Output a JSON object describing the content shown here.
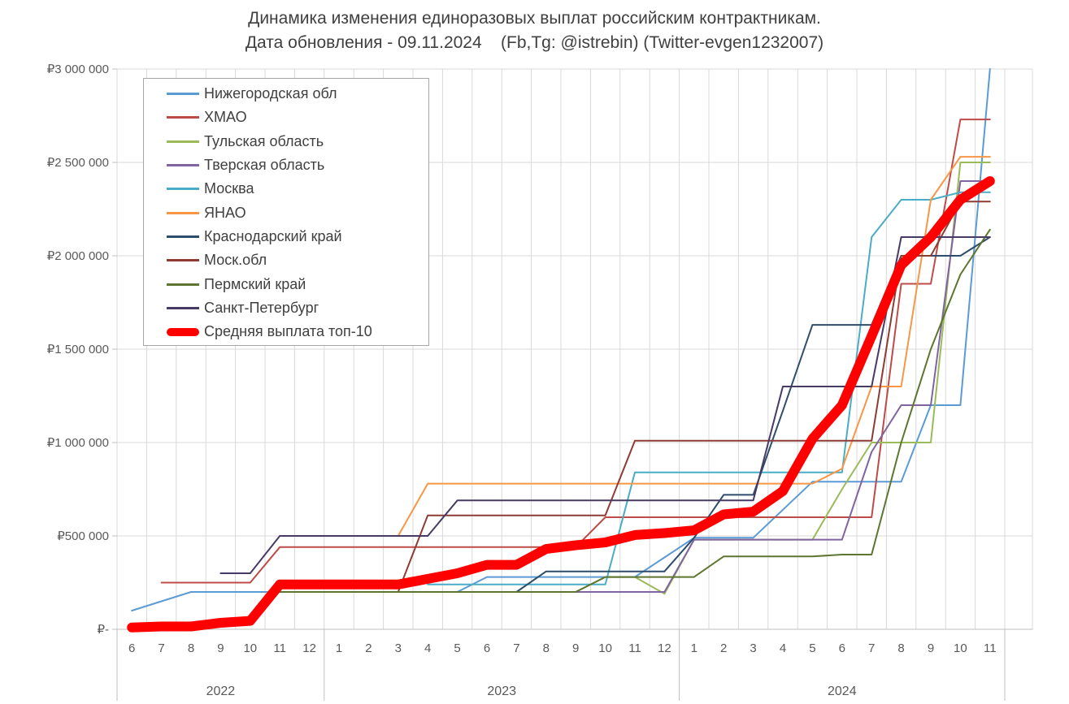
{
  "title": {
    "line1": "Динамика изменения единоразовых выплат российским контрактникам.",
    "line2": "Дата обновления - 09.11.2024    (Fb,Tg: @istrebin) (Twitter-evgen1232007)"
  },
  "chart_data": {
    "type": "line",
    "title": "Динамика изменения единоразовых выплат российским контрактникам.",
    "subtitle": "Дата обновления - 09.11.2024 (Fb,Tg: @istrebin) (Twitter-evgen1232007)",
    "grid": true,
    "legend_position": "top-left-inside",
    "x_months": [
      "6",
      "7",
      "8",
      "9",
      "10",
      "11",
      "12",
      "1",
      "2",
      "3",
      "4",
      "5",
      "6",
      "7",
      "8",
      "9",
      "10",
      "11",
      "12",
      "1",
      "2",
      "3",
      "4",
      "5",
      "6",
      "7",
      "8",
      "9",
      "10",
      "11"
    ],
    "x_years": [
      {
        "label": "2022",
        "start": 0,
        "count": 7
      },
      {
        "label": "2023",
        "start": 7,
        "count": 12
      },
      {
        "label": "2024",
        "start": 19,
        "count": 11
      }
    ],
    "y_axis": {
      "min": 0,
      "max": 3000000,
      "tick_values": [
        0,
        500000,
        1000000,
        1500000,
        2000000,
        2500000,
        3000000
      ],
      "tick_labels": [
        "₽-",
        "₽500 000",
        "₽1 000 000",
        "₽1 500 000",
        "₽2 000 000",
        "₽2 500 000",
        "₽3 000 000"
      ]
    },
    "series": [
      {
        "name": "Нижегородская обл",
        "color": "#5B9BD5",
        "width": 2,
        "values": [
          100000,
          150000,
          200000,
          200000,
          200000,
          200000,
          200000,
          200000,
          200000,
          200000,
          200000,
          200000,
          280000,
          280000,
          280000,
          280000,
          280000,
          280000,
          385000,
          490000,
          490000,
          490000,
          640000,
          790000,
          790000,
          790000,
          790000,
          1200000,
          1200000,
          3000000
        ]
      },
      {
        "name": "ХМАО",
        "color": "#BE4B48",
        "width": 2,
        "values": [
          null,
          250000,
          250000,
          250000,
          250000,
          440000,
          440000,
          440000,
          440000,
          440000,
          440000,
          440000,
          440000,
          440000,
          440000,
          440000,
          600000,
          600000,
          600000,
          600000,
          600000,
          600000,
          600000,
          600000,
          600000,
          600000,
          1850000,
          1850000,
          2730000,
          2730000
        ]
      },
      {
        "name": "Тульская область",
        "color": "#9BBB59",
        "width": 2,
        "values": [
          null,
          null,
          null,
          null,
          null,
          200000,
          200000,
          200000,
          200000,
          200000,
          200000,
          200000,
          200000,
          200000,
          200000,
          200000,
          280000,
          280000,
          190000,
          480000,
          480000,
          480000,
          480000,
          480000,
          750000,
          1000000,
          1000000,
          1000000,
          2500000,
          2500000
        ]
      },
      {
        "name": "Тверская область",
        "color": "#8064A2",
        "width": 2,
        "values": [
          null,
          null,
          null,
          null,
          null,
          200000,
          200000,
          200000,
          200000,
          200000,
          200000,
          200000,
          200000,
          200000,
          200000,
          200000,
          200000,
          200000,
          200000,
          480000,
          480000,
          480000,
          480000,
          480000,
          480000,
          950000,
          1200000,
          1200000,
          2400000,
          2400000
        ]
      },
      {
        "name": "Москва",
        "color": "#4BACC6",
        "width": 2,
        "values": [
          null,
          null,
          null,
          null,
          null,
          null,
          null,
          null,
          null,
          null,
          240000,
          240000,
          240000,
          240000,
          240000,
          240000,
          240000,
          840000,
          840000,
          840000,
          840000,
          840000,
          840000,
          840000,
          840000,
          2100000,
          2300000,
          2300000,
          2340000,
          2340000
        ]
      },
      {
        "name": "ЯНАО",
        "color": "#F79646",
        "width": 2,
        "values": [
          null,
          null,
          null,
          null,
          null,
          500000,
          500000,
          500000,
          500000,
          500000,
          780000,
          780000,
          780000,
          780000,
          780000,
          780000,
          780000,
          780000,
          780000,
          780000,
          780000,
          780000,
          780000,
          780000,
          860000,
          1300000,
          1300000,
          2300000,
          2530000,
          2530000
        ]
      },
      {
        "name": "Краснодарский край",
        "color": "#2E4D6B",
        "width": 2,
        "values": [
          null,
          null,
          null,
          null,
          null,
          200000,
          200000,
          200000,
          200000,
          200000,
          200000,
          200000,
          200000,
          200000,
          310000,
          310000,
          310000,
          310000,
          310000,
          490000,
          720000,
          720000,
          1170000,
          1630000,
          1630000,
          1630000,
          2000000,
          2000000,
          2000000,
          2100000
        ]
      },
      {
        "name": "Моск.обл",
        "color": "#8E3B34",
        "width": 2,
        "values": [
          null,
          null,
          null,
          null,
          null,
          200000,
          200000,
          200000,
          200000,
          200000,
          610000,
          610000,
          610000,
          610000,
          610000,
          610000,
          610000,
          1010000,
          1010000,
          1010000,
          1010000,
          1010000,
          1010000,
          1010000,
          1010000,
          1010000,
          2000000,
          2000000,
          2290000,
          2290000
        ]
      },
      {
        "name": "Пермский край",
        "color": "#5E7530",
        "width": 2,
        "values": [
          null,
          null,
          null,
          null,
          null,
          200000,
          200000,
          200000,
          200000,
          200000,
          200000,
          200000,
          200000,
          200000,
          200000,
          200000,
          280000,
          280000,
          280000,
          280000,
          390000,
          390000,
          390000,
          390000,
          400000,
          400000,
          1000000,
          1500000,
          1900000,
          2140000
        ]
      },
      {
        "name": "Санкт-Петербург",
        "color": "#473B66",
        "width": 2,
        "values": [
          null,
          null,
          null,
          300000,
          300000,
          500000,
          500000,
          500000,
          500000,
          500000,
          500000,
          690000,
          690000,
          690000,
          690000,
          690000,
          690000,
          690000,
          690000,
          690000,
          690000,
          690000,
          1300000,
          1300000,
          1300000,
          1300000,
          2100000,
          2100000,
          2100000,
          2100000
        ]
      },
      {
        "name": "Средняя выплата топ-10",
        "color": "#FF0000",
        "width": 12,
        "values": [
          10000,
          15000,
          15000,
          35000,
          45000,
          240000,
          240000,
          240000,
          240000,
          240000,
          270000,
          300000,
          345000,
          345000,
          430000,
          450000,
          465000,
          505000,
          515000,
          530000,
          615000,
          630000,
          740000,
          1020000,
          1200000,
          1570000,
          1950000,
          2100000,
          2300000,
          2400000
        ]
      }
    ]
  },
  "style": {
    "grid_color": "#D9D9D9",
    "axis_line_color": "#BFBFBF",
    "axis_text_color": "#595959",
    "title_text_color": "#404040",
    "legend_border_color": "#A6A6A6"
  }
}
